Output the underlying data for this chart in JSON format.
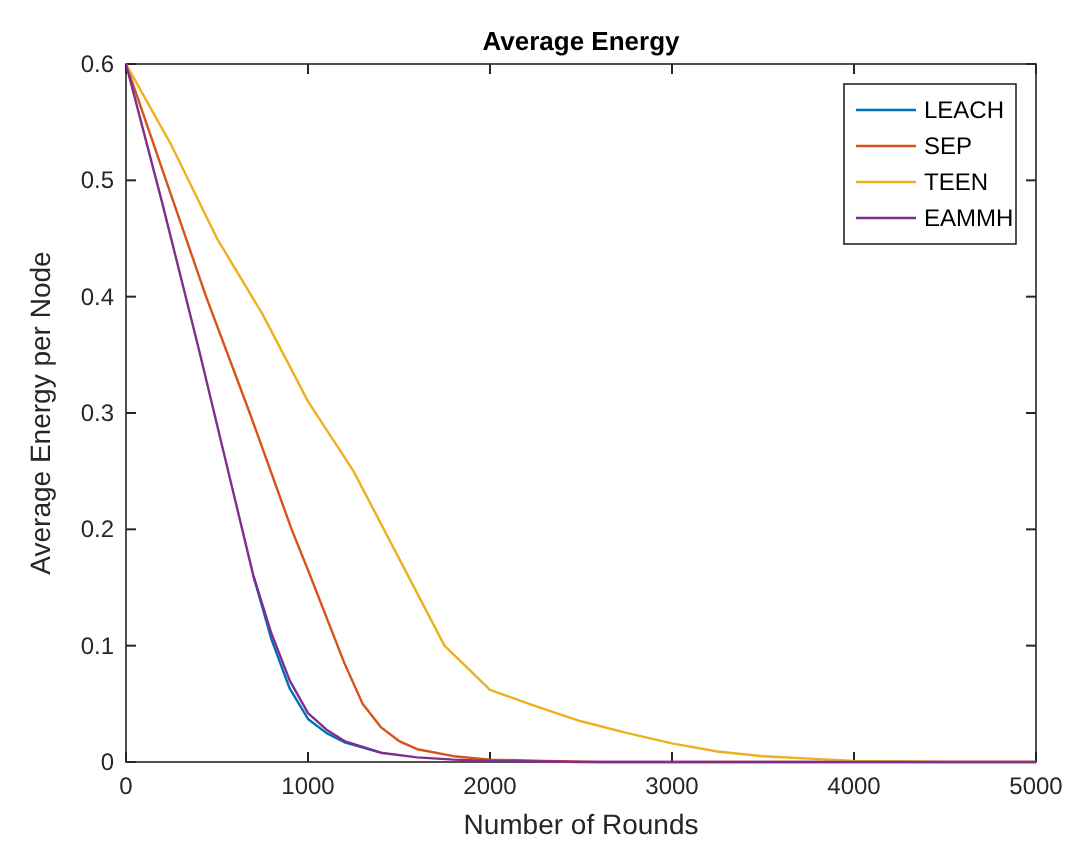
{
  "chart_data": {
    "type": "line",
    "title": "Average Energy",
    "xlabel": "Number of Rounds",
    "ylabel": "Average Energy per Node",
    "xlim": [
      0,
      5000
    ],
    "xticks": [
      0,
      1000,
      2000,
      3000,
      4000,
      5000
    ],
    "ylim": [
      0,
      0.6
    ],
    "yticks": [
      0,
      0.1,
      0.2,
      0.3,
      0.4,
      0.5,
      0.6
    ],
    "grid": false,
    "legend": "top right",
    "marker": "none",
    "line_style": "solid",
    "series": [
      {
        "name": "LEACH",
        "color": "#0072bd",
        "x": [
          700,
          800,
          900,
          1000,
          1100,
          1200,
          1400
        ],
        "values": [
          0.16,
          0.105,
          0.063,
          0.037,
          0.025,
          0.017,
          0.008
        ]
      },
      {
        "name": "SEP",
        "color": "#d95319",
        "x": [
          0,
          220,
          440,
          680,
          910,
          1000,
          1100,
          1200,
          1300,
          1400,
          1500,
          1600,
          1800,
          2000,
          2300,
          2600,
          5000
        ],
        "values": [
          0.6,
          0.5,
          0.4,
          0.3,
          0.2,
          0.165,
          0.125,
          0.085,
          0.05,
          0.03,
          0.018,
          0.011,
          0.005,
          0.002,
          0.001,
          0,
          0
        ]
      },
      {
        "name": "TEEN",
        "color": "#edb120",
        "x": [
          0,
          250,
          500,
          750,
          1000,
          1250,
          1500,
          1750,
          2000,
          2250,
          2500,
          2750,
          3000,
          3250,
          3500,
          4000,
          4500,
          5000
        ],
        "values": [
          0.6,
          0.53,
          0.45,
          0.385,
          0.31,
          0.25,
          0.175,
          0.1,
          0.062,
          0.048,
          0.035,
          0.025,
          0.016,
          0.009,
          0.005,
          0.001,
          0,
          0
        ]
      },
      {
        "name": "EAMMH",
        "color": "#7e2f8e",
        "x": [
          0,
          200,
          400,
          600,
          700,
          800,
          900,
          1000,
          1100,
          1200,
          1400,
          1600,
          1800,
          2000,
          2500,
          5000
        ],
        "values": [
          0.6,
          0.48,
          0.355,
          0.225,
          0.16,
          0.11,
          0.07,
          0.042,
          0.028,
          0.018,
          0.008,
          0.004,
          0.002,
          0.001,
          0,
          0
        ]
      }
    ]
  }
}
